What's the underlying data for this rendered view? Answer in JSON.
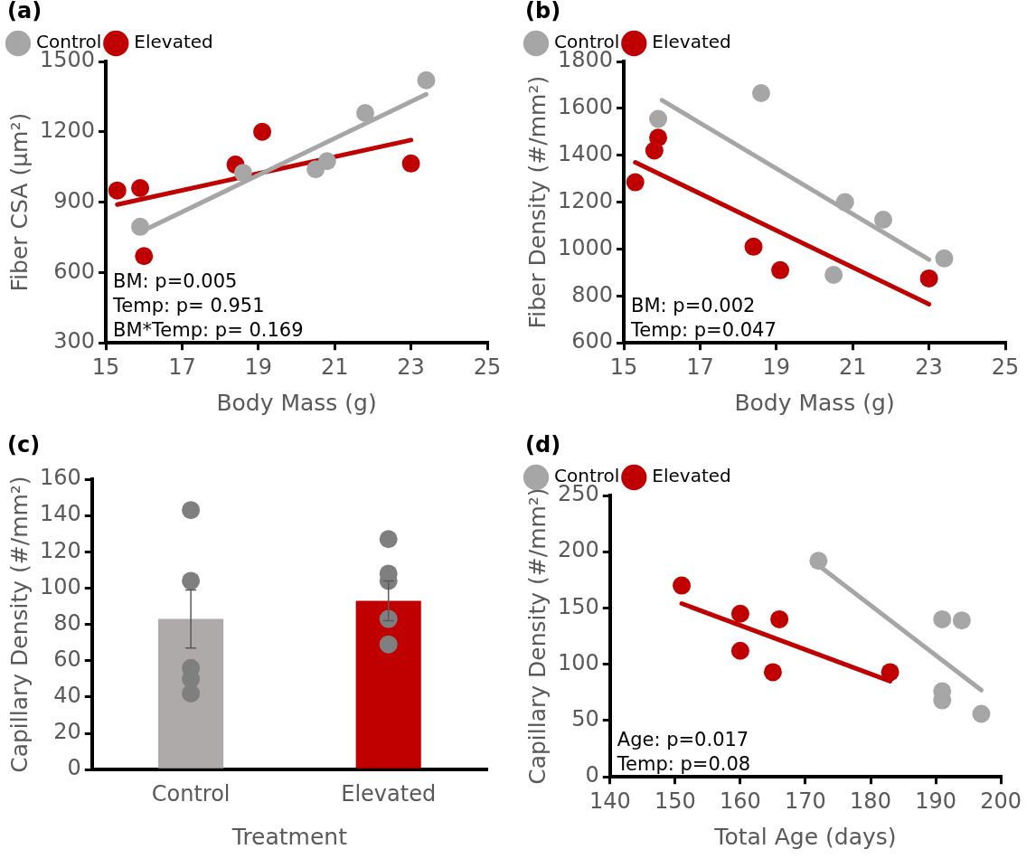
{
  "chart_data": [
    {
      "type": "scatter",
      "title": "(a)",
      "xlabel": "Body Mass (g)",
      "ylabel": "Fiber CSA (µm²)",
      "xlim": [
        15,
        25
      ],
      "xticks": [
        15,
        17,
        19,
        21,
        23,
        25
      ],
      "ylim": [
        300,
        1500
      ],
      "yticks": [
        300,
        600,
        900,
        1200,
        1500
      ],
      "legend": "top left",
      "marker": "circle",
      "series": [
        {
          "name": "Control",
          "color": "#a6a6a6",
          "x": [
            15.9,
            18.6,
            20.5,
            20.8,
            21.8,
            23.4
          ],
          "values": [
            795,
            1025,
            1040,
            1075,
            1280,
            1420
          ]
        },
        {
          "name": "Elevated",
          "color": "#c00000",
          "x": [
            15.3,
            15.9,
            16.0,
            18.4,
            19.1,
            23.0
          ],
          "values": [
            950,
            960,
            670,
            1060,
            1200,
            1065
          ]
        },
        {
          "type": "line",
          "marker": "none",
          "color": "#a6a6a6",
          "x": [
            16.0,
            23.4
          ],
          "values": [
            780,
            1360
          ]
        },
        {
          "type": "line",
          "marker": "none",
          "color": "#c00000",
          "x": [
            15.3,
            23.0
          ],
          "values": [
            890,
            1165
          ]
        }
      ],
      "annotations": [
        "BM: p=0.005",
        "Temp: p= 0.951",
        "BM*Temp: p= 0.169"
      ]
    },
    {
      "type": "scatter",
      "title": "(b)",
      "xlabel": "Body Mass (g)",
      "ylabel": "Fiber Density (#/mm²)",
      "xlim": [
        15,
        25
      ],
      "xticks": [
        15,
        17,
        19,
        21,
        23,
        25
      ],
      "ylim": [
        600,
        1800
      ],
      "yticks": [
        600,
        800,
        1000,
        1200,
        1400,
        1600,
        1800
      ],
      "legend": "top left",
      "marker": "circle",
      "series": [
        {
          "name": "Control",
          "color": "#a6a6a6",
          "x": [
            15.9,
            18.6,
            20.5,
            20.8,
            21.8,
            23.4
          ],
          "values": [
            1555,
            1665,
            890,
            1200,
            1125,
            960
          ]
        },
        {
          "name": "Elevated",
          "color": "#c00000",
          "x": [
            15.3,
            15.8,
            15.9,
            18.4,
            19.1,
            23.0
          ],
          "values": [
            1285,
            1420,
            1475,
            1010,
            910,
            875
          ]
        },
        {
          "type": "line",
          "marker": "none",
          "color": "#a6a6a6",
          "x": [
            16.0,
            23.0
          ],
          "values": [
            1635,
            955
          ]
        },
        {
          "type": "line",
          "marker": "none",
          "color": "#c00000",
          "x": [
            15.3,
            23.0
          ],
          "values": [
            1370,
            765
          ]
        }
      ],
      "annotations": [
        "BM: p=0.002",
        "Temp: p=0.047"
      ]
    },
    {
      "type": "bar",
      "title": "(c)",
      "xlabel": "Treatment",
      "ylabel": "Capillary Density (#/mm²)",
      "categories": [
        "Control",
        "Elevated"
      ],
      "values": [
        83,
        93
      ],
      "colors": [
        "#aeaaaa",
        "#c00000"
      ],
      "errors": [
        16,
        11
      ],
      "ylim": [
        0,
        160
      ],
      "yticks": [
        0,
        20,
        40,
        60,
        80,
        100,
        120,
        140,
        160
      ],
      "series": [
        {
          "type": "scatter",
          "marker": "circle",
          "color": "#7f7f7f",
          "x": [
            "Control",
            "Control",
            "Control",
            "Control",
            "Control",
            "Control",
            "Elevated",
            "Elevated",
            "Elevated",
            "Elevated",
            "Elevated"
          ],
          "values": [
            143,
            104,
            null,
            56,
            50,
            42,
            127,
            104,
            108,
            83,
            69
          ]
        }
      ]
    },
    {
      "type": "scatter",
      "title": "(d)",
      "xlabel": "Total Age (days)",
      "ylabel": "Capillary Density (#/mm²)",
      "xlim": [
        140,
        200
      ],
      "xticks": [
        140,
        150,
        160,
        170,
        180,
        190,
        200
      ],
      "ylim": [
        0,
        250
      ],
      "yticks": [
        0,
        50,
        100,
        150,
        200,
        250
      ],
      "legend": "top left",
      "marker": "circle",
      "series": [
        {
          "name": "Control",
          "color": "#a6a6a6",
          "x": [
            172,
            191,
            194,
            191,
            191,
            197
          ],
          "values": [
            192,
            140,
            139,
            76,
            68,
            56
          ]
        },
        {
          "name": "Elevated",
          "color": "#c00000",
          "x": [
            151,
            160,
            166,
            160,
            165,
            183
          ],
          "values": [
            170,
            145,
            140,
            112,
            93,
            93
          ]
        },
        {
          "type": "line",
          "marker": "none",
          "color": "#a6a6a6",
          "x": [
            172,
            197
          ],
          "values": [
            188,
            77
          ]
        },
        {
          "type": "line",
          "marker": "none",
          "color": "#c00000",
          "x": [
            151,
            183
          ],
          "values": [
            154,
            85
          ]
        }
      ],
      "annotations": [
        "Age: p=0.017",
        "Temp: p=0.08"
      ]
    }
  ]
}
